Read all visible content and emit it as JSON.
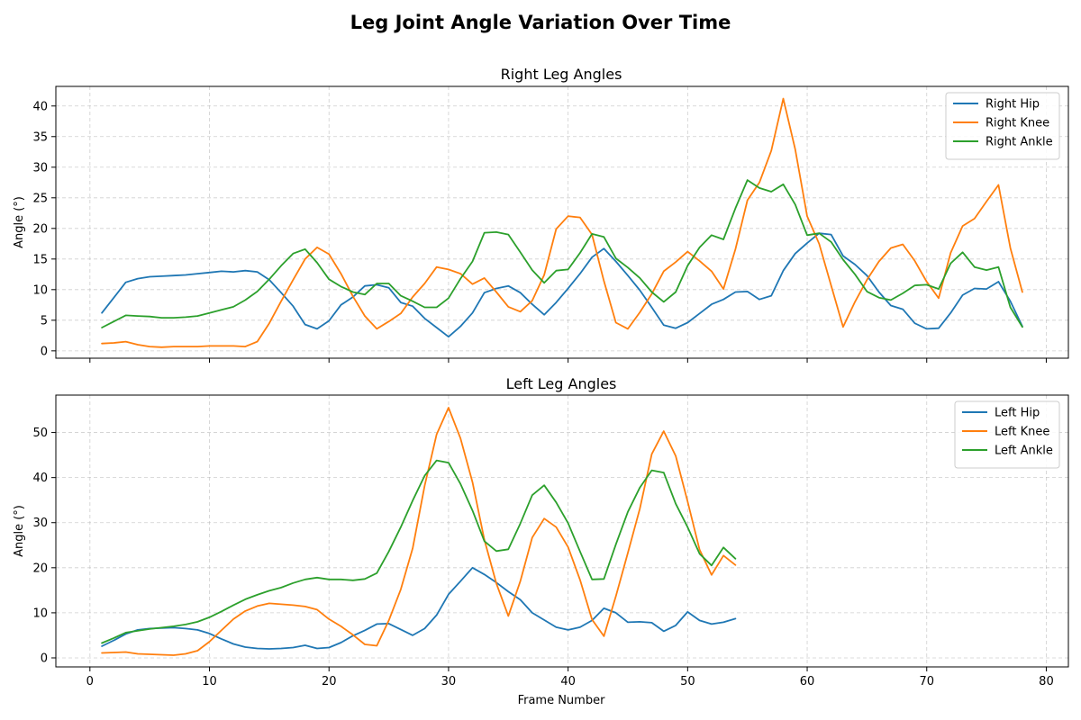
{
  "title": "Leg Joint Angle Variation Over Time",
  "chart_data": [
    {
      "type": "line",
      "title": "Right Leg Angles",
      "xlabel": "",
      "ylabel": "Angle (°)",
      "xlim": [
        -2.85,
        81.85
      ],
      "ylim": [
        -1.2,
        43.2
      ],
      "xticks": [
        0,
        10,
        20,
        30,
        40,
        50,
        60,
        70,
        80
      ],
      "yticks": [
        0,
        5,
        10,
        15,
        20,
        25,
        30,
        35,
        40
      ],
      "show_x_tick_labels": false,
      "grid": true,
      "legend_position": "upper right",
      "x": [
        1,
        2,
        3,
        4,
        5,
        6,
        7,
        8,
        9,
        10,
        11,
        12,
        13,
        14,
        15,
        16,
        17,
        18,
        19,
        20,
        21,
        22,
        23,
        24,
        25,
        26,
        27,
        28,
        29,
        30,
        31,
        32,
        33,
        34,
        35,
        36,
        37,
        38,
        39,
        40,
        41,
        42,
        43,
        44,
        45,
        46,
        47,
        48,
        49,
        50,
        51,
        52,
        53,
        54,
        55,
        56,
        57,
        58,
        59,
        60,
        61,
        62,
        63,
        64,
        65,
        66,
        67,
        68,
        69,
        70,
        71,
        72,
        73,
        74,
        75,
        76,
        77,
        78
      ],
      "series": [
        {
          "name": "Right Hip",
          "color": "#1f77b4",
          "values": [
            6.2,
            8.7,
            11.2,
            11.8,
            12.1,
            12.2,
            12.3,
            12.4,
            12.6,
            12.8,
            13.0,
            12.9,
            13.1,
            12.9,
            11.6,
            9.5,
            7.3,
            4.3,
            3.6,
            4.9,
            7.5,
            8.8,
            10.6,
            10.8,
            10.3,
            7.9,
            7.3,
            5.3,
            3.8,
            2.3,
            4.0,
            6.2,
            9.5,
            10.2,
            10.6,
            9.5,
            7.6,
            5.9,
            7.9,
            10.2,
            12.6,
            15.3,
            16.7,
            14.6,
            12.3,
            9.9,
            7.1,
            4.2,
            3.7,
            4.6,
            6.1,
            7.6,
            8.4,
            9.6,
            9.7,
            8.4,
            9.0,
            13.1,
            15.9,
            17.6,
            19.2,
            19.0,
            15.5,
            14.1,
            12.3,
            9.6,
            7.4,
            6.8,
            4.5,
            3.6,
            3.7,
            6.2,
            9.1,
            10.2,
            10.1,
            11.3,
            8.1,
            4.0
          ]
        },
        {
          "name": "Right Knee",
          "color": "#ff7f0e",
          "values": [
            1.2,
            1.3,
            1.5,
            1.0,
            0.7,
            0.6,
            0.7,
            0.7,
            0.7,
            0.8,
            0.8,
            0.8,
            0.7,
            1.5,
            4.5,
            8.1,
            11.6,
            15.0,
            16.9,
            15.8,
            12.6,
            8.9,
            5.7,
            3.6,
            4.8,
            6.1,
            8.8,
            11.0,
            13.7,
            13.3,
            12.6,
            10.9,
            11.9,
            9.6,
            7.2,
            6.4,
            8.2,
            12.4,
            19.9,
            22.0,
            21.8,
            19.0,
            11.4,
            4.6,
            3.6,
            6.3,
            9.3,
            13.0,
            14.5,
            16.2,
            14.7,
            13.0,
            10.1,
            16.6,
            24.6,
            27.5,
            32.7,
            41.2,
            32.9,
            22.0,
            17.5,
            10.7,
            3.9,
            8.0,
            11.6,
            14.6,
            16.8,
            17.4,
            14.7,
            11.3,
            8.6,
            16.0,
            20.4,
            21.6,
            24.4,
            27.1,
            16.8,
            9.6
          ]
        },
        {
          "name": "Right Ankle",
          "color": "#2ca02c",
          "values": [
            3.8,
            4.8,
            5.8,
            5.7,
            5.6,
            5.4,
            5.4,
            5.5,
            5.7,
            6.2,
            6.7,
            7.2,
            8.3,
            9.7,
            11.7,
            13.9,
            15.9,
            16.6,
            14.4,
            11.7,
            10.5,
            9.6,
            9.2,
            11.0,
            11.0,
            9.0,
            8.1,
            7.1,
            7.1,
            8.6,
            11.8,
            14.6,
            19.3,
            19.4,
            19.0,
            16.1,
            13.2,
            11.1,
            13.1,
            13.3,
            16.0,
            19.1,
            18.6,
            15.1,
            13.6,
            11.9,
            9.6,
            8.0,
            9.6,
            13.9,
            16.9,
            18.9,
            18.2,
            23.3,
            27.9,
            26.6,
            26.0,
            27.2,
            23.9,
            18.9,
            19.2,
            17.8,
            14.9,
            12.5,
            9.7,
            8.7,
            8.3,
            9.4,
            10.7,
            10.8,
            10.1,
            14.3,
            16.1,
            13.7,
            13.2,
            13.7,
            7.1,
            3.9
          ]
        }
      ]
    },
    {
      "type": "line",
      "title": "Left Leg Angles",
      "xlabel": "Frame Number",
      "ylabel": "Angle (°)",
      "xlim": [
        -2.85,
        81.85
      ],
      "ylim": [
        -2.0,
        58.3
      ],
      "xticks": [
        0,
        10,
        20,
        30,
        40,
        50,
        60,
        70,
        80
      ],
      "yticks": [
        0,
        10,
        20,
        30,
        40,
        50
      ],
      "show_x_tick_labels": true,
      "grid": true,
      "legend_position": "upper right",
      "x": [
        1,
        2,
        3,
        4,
        5,
        6,
        7,
        8,
        9,
        10,
        11,
        12,
        13,
        14,
        15,
        16,
        17,
        18,
        19,
        20,
        21,
        22,
        23,
        24,
        25,
        26,
        27,
        28,
        29,
        30,
        31,
        32,
        33,
        34,
        35,
        36,
        37,
        38,
        39,
        40,
        41,
        42,
        43,
        44,
        45,
        46,
        47,
        48,
        49,
        50,
        51,
        52,
        53,
        54
      ],
      "series": [
        {
          "name": "Left Hip",
          "color": "#1f77b4",
          "values": [
            2.6,
            3.9,
            5.3,
            6.2,
            6.5,
            6.6,
            6.7,
            6.5,
            6.2,
            5.4,
            4.2,
            3.1,
            2.4,
            2.1,
            2.0,
            2.1,
            2.3,
            2.8,
            2.1,
            2.3,
            3.4,
            4.9,
            6.1,
            7.5,
            7.6,
            6.3,
            5.0,
            6.5,
            9.5,
            14.1,
            17.0,
            20.0,
            18.5,
            16.7,
            14.7,
            12.9,
            10.0,
            8.4,
            6.8,
            6.2,
            6.8,
            8.3,
            11.0,
            10.0,
            7.9,
            8.0,
            7.8,
            5.9,
            7.2,
            10.2,
            8.3,
            7.5,
            7.9,
            8.7
          ]
        },
        {
          "name": "Left Knee",
          "color": "#ff7f0e",
          "values": [
            1.1,
            1.2,
            1.3,
            0.9,
            0.8,
            0.7,
            0.6,
            0.9,
            1.6,
            3.6,
            6.1,
            8.6,
            10.4,
            11.5,
            12.1,
            11.9,
            11.7,
            11.4,
            10.7,
            8.6,
            7.0,
            5.1,
            3.0,
            2.7,
            8.3,
            15.2,
            24.3,
            38.2,
            49.6,
            55.5,
            48.7,
            39.0,
            26.2,
            16.5,
            9.3,
            17.0,
            26.7,
            30.9,
            29.0,
            24.6,
            17.3,
            8.5,
            4.8,
            13.7,
            23.3,
            33.1,
            45.2,
            50.3,
            44.8,
            34.7,
            24.0,
            18.4,
            22.7,
            20.6
          ]
        },
        {
          "name": "Left Ankle",
          "color": "#2ca02c",
          "values": [
            3.3,
            4.4,
            5.6,
            6.0,
            6.4,
            6.7,
            7.0,
            7.4,
            8.0,
            9.0,
            10.3,
            11.7,
            13.0,
            14.0,
            14.9,
            15.6,
            16.6,
            17.4,
            17.8,
            17.4,
            17.4,
            17.2,
            17.5,
            18.8,
            23.6,
            29.0,
            34.9,
            40.4,
            43.8,
            43.3,
            38.6,
            32.7,
            25.9,
            23.7,
            24.1,
            29.8,
            36.1,
            38.3,
            34.5,
            29.9,
            23.6,
            17.4,
            17.5,
            25.2,
            32.4,
            37.8,
            41.6,
            41.1,
            34.2,
            29.0,
            23.1,
            20.5,
            24.5,
            22.0
          ]
        }
      ]
    }
  ]
}
